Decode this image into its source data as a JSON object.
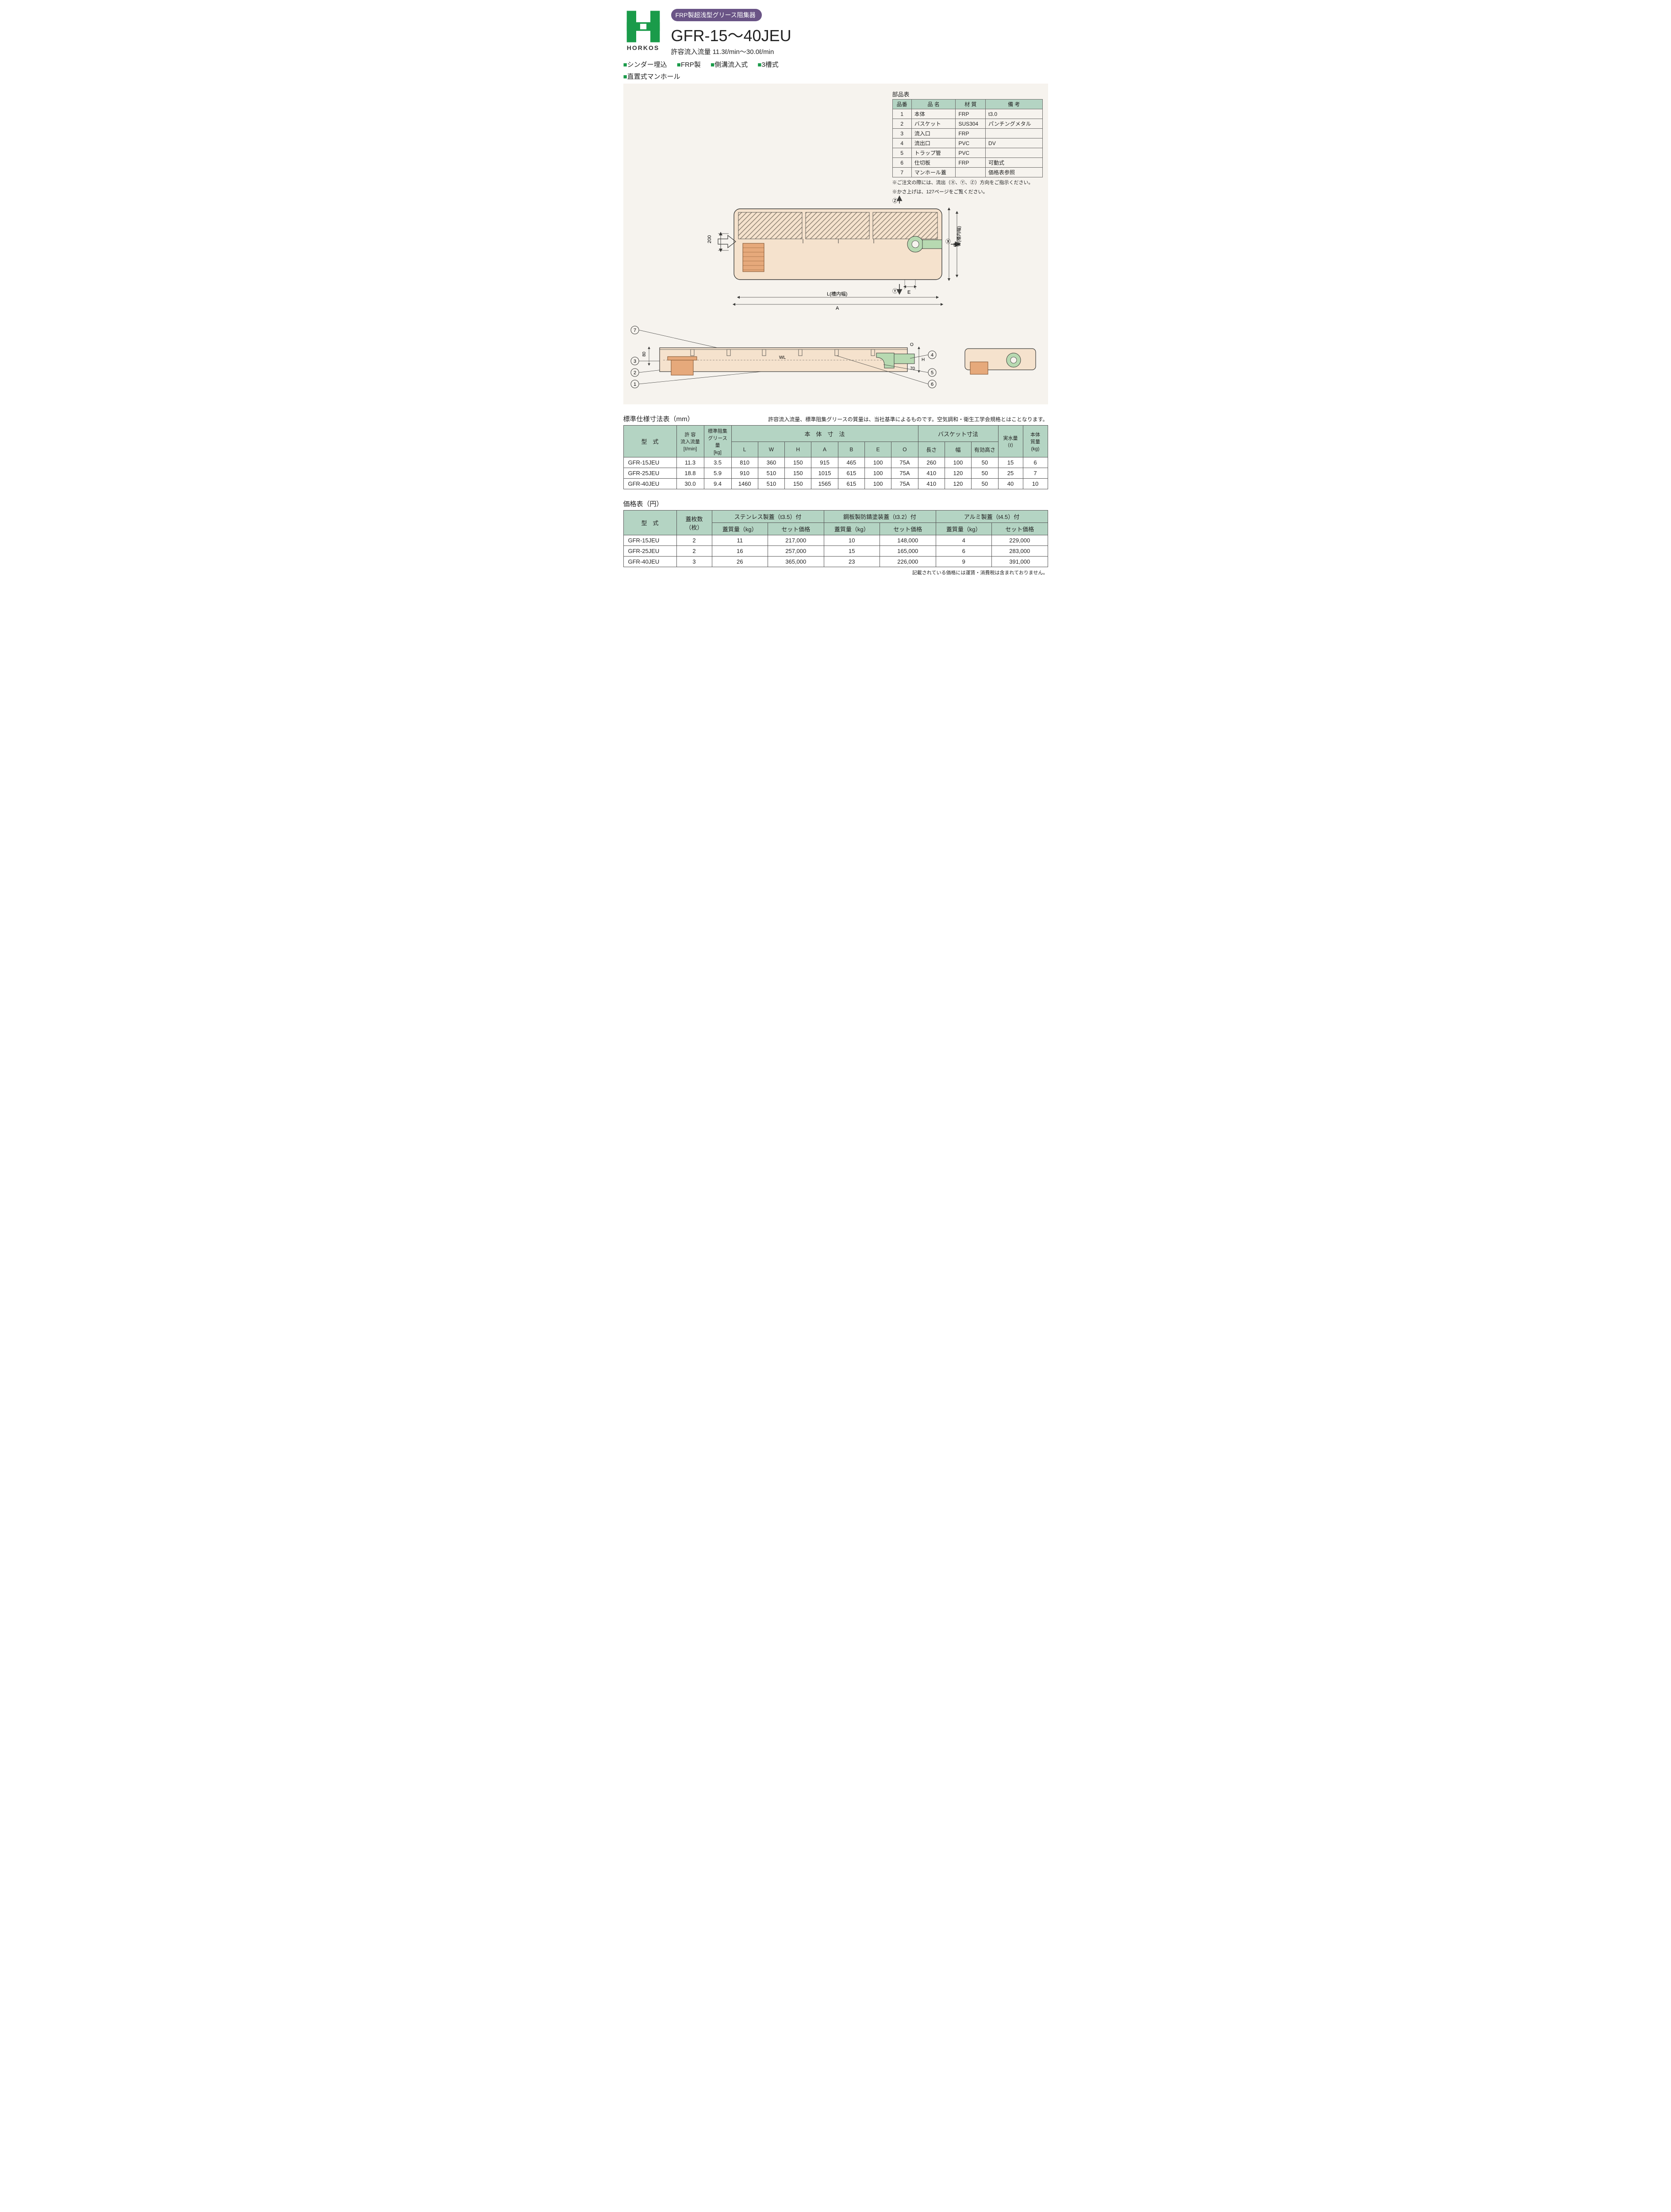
{
  "brand": "HORKOS",
  "logo": {
    "color": "#1a9b4a"
  },
  "header": {
    "badge": "FRP製超浅型グリース阻集器",
    "model_title": "GFR-15〜40JEU",
    "flow_range": "許容流入流量 11.3ℓ/min〜30.0ℓ/min"
  },
  "tags": {
    "row1": [
      "シンダー埋込",
      "FRP製",
      "側溝流入式",
      "3槽式"
    ],
    "row2": [
      "直置式マンホール"
    ]
  },
  "parts": {
    "title": "部品表",
    "headers": [
      "品番",
      "品 名",
      "材 質",
      "備 考"
    ],
    "rows": [
      [
        "1",
        "本体",
        "FRP",
        "t3.0"
      ],
      [
        "2",
        "バスケット",
        "SUS304",
        "パンチングメタル"
      ],
      [
        "3",
        "流入口",
        "FRP",
        ""
      ],
      [
        "4",
        "流出口",
        "PVC",
        "DV"
      ],
      [
        "5",
        "トラップ管",
        "PVC",
        ""
      ],
      [
        "6",
        "仕切板",
        "FRP",
        "可動式"
      ],
      [
        "7",
        "マンホール蓋",
        "",
        "価格表参照"
      ]
    ],
    "notes": [
      "※ご注文の際には、流出（Ⓧ、Ⓨ、Ⓩ）方向をご指示ください。",
      "※かさ上げは、127ページをご覧ください。"
    ]
  },
  "diagram": {
    "bodyFill": "#f5e2cd",
    "hatchFill": "#a89a88",
    "basketFill": "#e6a97b",
    "pipeFill": "#b7d9b1",
    "outline": "#3b3b39",
    "dimColor": "#3b3b39",
    "labels": {
      "inflow200": "200",
      "L": "L(槽内幅)",
      "A": "A",
      "E": "E",
      "B": "B",
      "W": "W(槽内幅)",
      "Z": "Ⓩ",
      "X": "Ⓧ",
      "Y": "Ⓨ",
      "WL": "WL",
      "H": "H",
      "O": "O",
      "d70": "70",
      "d80": "80"
    },
    "callouts": [
      "1",
      "2",
      "3",
      "4",
      "5",
      "6",
      "7"
    ]
  },
  "dim_table": {
    "title": "標準仕様寸法表（mm）",
    "note": "許容流入流量、標準阻集グリースの質量は、当社基準によるものです。空気調和・衛生工学会規格とはことなります。",
    "header_row1": {
      "model": "型　式",
      "flow": "許 容\n流入流量\n[ℓ/min]",
      "grease": "標準阻集\nグリース量\n[kg]",
      "body": "本　体　寸　法",
      "basket": "バスケット寸法",
      "water": "実水量\n（ℓ）",
      "mass": "本体\n質量\n(kg)"
    },
    "header_row2": [
      "L",
      "W",
      "H",
      "A",
      "B",
      "E",
      "O",
      "長さ",
      "幅",
      "有効高さ"
    ],
    "rows": [
      [
        "GFR-15JEU",
        "11.3",
        "3.5",
        "810",
        "360",
        "150",
        "915",
        "465",
        "100",
        "75A",
        "260",
        "100",
        "50",
        "15",
        "6"
      ],
      [
        "GFR-25JEU",
        "18.8",
        "5.9",
        "910",
        "510",
        "150",
        "1015",
        "615",
        "100",
        "75A",
        "410",
        "120",
        "50",
        "25",
        "7"
      ],
      [
        "GFR-40JEU",
        "30.0",
        "9.4",
        "1460",
        "510",
        "150",
        "1565",
        "615",
        "100",
        "75A",
        "410",
        "120",
        "50",
        "40",
        "10"
      ]
    ]
  },
  "price_table": {
    "title": "価格表（円）",
    "header_row1": {
      "model": "型　式",
      "covers": "蓋枚数\n（枚）",
      "sus": "ステンレス製蓋（t3.5）付",
      "steel": "鋼板製防錆塗装蓋（t3.2）付",
      "al": "アルミ製蓋（t4.5）付"
    },
    "header_row2_pair": [
      "蓋質量（kg）",
      "セット価格"
    ],
    "rows": [
      [
        "GFR-15JEU",
        "2",
        "11",
        "217,000",
        "10",
        "148,000",
        "4",
        "229,000"
      ],
      [
        "GFR-25JEU",
        "2",
        "16",
        "257,000",
        "15",
        "165,000",
        "6",
        "283,000"
      ],
      [
        "GFR-40JEU",
        "3",
        "26",
        "365,000",
        "23",
        "226,000",
        "9",
        "391,000"
      ]
    ],
    "footer": "記載されている価格には運賃・消費税は含まれておりません。"
  }
}
